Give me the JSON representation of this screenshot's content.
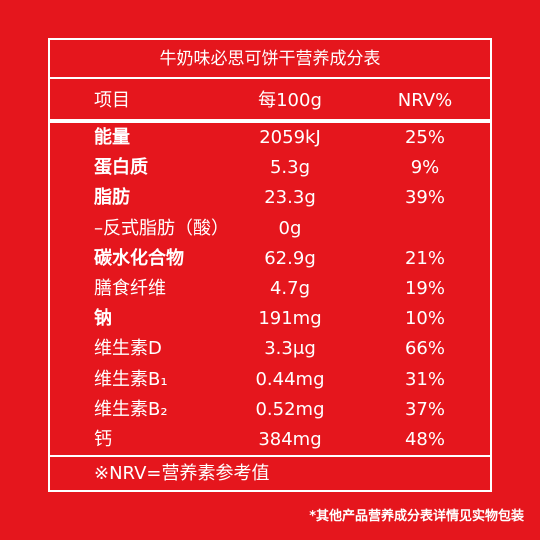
{
  "title": "牛奶味必思可饼干营养成分表",
  "table": {
    "header": [
      "项目",
      "每100g",
      "NRV%"
    ],
    "rows": [
      {
        "name": "能量",
        "amount": "2059kJ",
        "nrv": "25%",
        "bold": true
      },
      {
        "name": "蛋白质",
        "amount": "5.3g",
        "nrv": "9%",
        "bold": true
      },
      {
        "name": "脂肪",
        "amount": "23.3g",
        "nrv": "39%",
        "bold": true
      },
      {
        "name": "–反式脂肪（酸）",
        "amount": "0g",
        "nrv": null,
        "bold": false
      },
      {
        "name": "碳水化合物",
        "amount": "62.9g",
        "nrv": "21%",
        "bold": true
      },
      {
        "name": "膳食纤维",
        "amount": "4.7g",
        "nrv": "19%",
        "bold": false
      },
      {
        "name": "钠",
        "amount": "191mg",
        "nrv": "10%",
        "bold": true
      },
      {
        "name": "维生素D",
        "amount": "3.3μg",
        "nrv": "66%",
        "bold": false
      },
      {
        "name": "维生素B₁",
        "amount": "0.44mg",
        "nrv": "31%",
        "bold": false
      },
      {
        "name": "维生素B₂",
        "amount": "0.52mg",
        "nrv": "37%",
        "bold": false
      },
      {
        "name": "钙",
        "amount": "384mg",
        "nrv": "48%",
        "bold": false
      }
    ]
  },
  "footnote": "※NRV=营养素参考值",
  "disclaimer": "*其他产品营养成分表详情见实物包装"
}
